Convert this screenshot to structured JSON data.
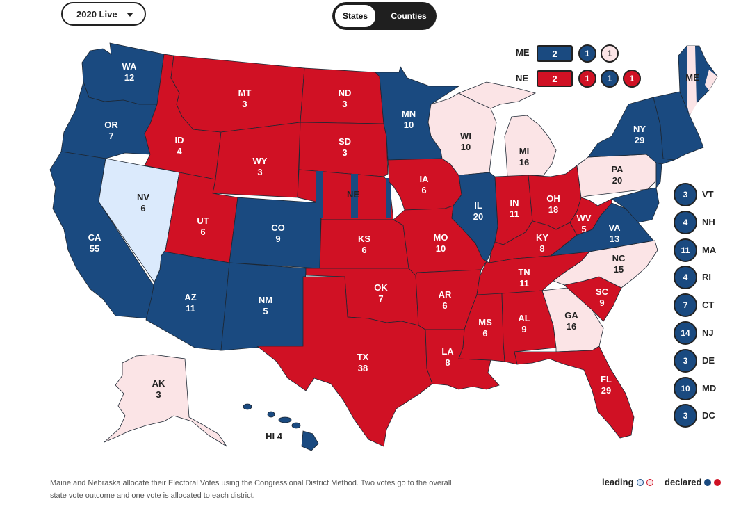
{
  "controls": {
    "year_select": "2020 Live",
    "view_options": [
      "States",
      "Counties"
    ]
  },
  "colors": {
    "dem_declared": "#1a4a80",
    "rep_declared": "#d01124",
    "dem_leading": "#dbeafc",
    "rep_leading": "#fbe4e6"
  },
  "states": {
    "WA": {
      "name": "WA",
      "ev": "12",
      "status": "dem_declared"
    },
    "OR": {
      "name": "OR",
      "ev": "7",
      "status": "dem_declared"
    },
    "CA": {
      "name": "CA",
      "ev": "55",
      "status": "dem_declared"
    },
    "NV": {
      "name": "NV",
      "ev": "6",
      "status": "dem_leading"
    },
    "ID": {
      "name": "ID",
      "ev": "4",
      "status": "rep_declared"
    },
    "MT": {
      "name": "MT",
      "ev": "3",
      "status": "rep_declared"
    },
    "WY": {
      "name": "WY",
      "ev": "3",
      "status": "rep_declared"
    },
    "UT": {
      "name": "UT",
      "ev": "6",
      "status": "rep_declared"
    },
    "AZ": {
      "name": "AZ",
      "ev": "11",
      "status": "dem_declared"
    },
    "CO": {
      "name": "CO",
      "ev": "9",
      "status": "dem_declared"
    },
    "NM": {
      "name": "NM",
      "ev": "5",
      "status": "dem_declared"
    },
    "ND": {
      "name": "ND",
      "ev": "3",
      "status": "rep_declared"
    },
    "SD": {
      "name": "SD",
      "ev": "3",
      "status": "rep_declared"
    },
    "NE": {
      "name": "NE",
      "ev": "",
      "status": "split"
    },
    "KS": {
      "name": "KS",
      "ev": "6",
      "status": "rep_declared"
    },
    "OK": {
      "name": "OK",
      "ev": "7",
      "status": "rep_declared"
    },
    "TX": {
      "name": "TX",
      "ev": "38",
      "status": "rep_declared"
    },
    "MN": {
      "name": "MN",
      "ev": "10",
      "status": "dem_declared"
    },
    "IA": {
      "name": "IA",
      "ev": "6",
      "status": "rep_declared"
    },
    "MO": {
      "name": "MO",
      "ev": "10",
      "status": "rep_declared"
    },
    "AR": {
      "name": "AR",
      "ev": "6",
      "status": "rep_declared"
    },
    "LA": {
      "name": "LA",
      "ev": "8",
      "status": "rep_declared"
    },
    "WI": {
      "name": "WI",
      "ev": "10",
      "status": "dem_leading_pink"
    },
    "IL": {
      "name": "IL",
      "ev": "20",
      "status": "dem_declared"
    },
    "MI": {
      "name": "MI",
      "ev": "16",
      "status": "rep_leading"
    },
    "IN": {
      "name": "IN",
      "ev": "11",
      "status": "rep_declared"
    },
    "OH": {
      "name": "OH",
      "ev": "18",
      "status": "rep_declared"
    },
    "KY": {
      "name": "KY",
      "ev": "8",
      "status": "rep_declared"
    },
    "TN": {
      "name": "TN",
      "ev": "11",
      "status": "rep_declared"
    },
    "MS": {
      "name": "MS",
      "ev": "6",
      "status": "rep_declared"
    },
    "AL": {
      "name": "AL",
      "ev": "9",
      "status": "rep_declared"
    },
    "GA": {
      "name": "GA",
      "ev": "16",
      "status": "rep_leading"
    },
    "FL": {
      "name": "FL",
      "ev": "29",
      "status": "rep_declared"
    },
    "SC": {
      "name": "SC",
      "ev": "9",
      "status": "rep_declared"
    },
    "NC": {
      "name": "NC",
      "ev": "15",
      "status": "rep_leading"
    },
    "VA": {
      "name": "VA",
      "ev": "13",
      "status": "dem_declared"
    },
    "WV": {
      "name": "WV",
      "ev": "5",
      "status": "rep_declared"
    },
    "PA": {
      "name": "PA",
      "ev": "20",
      "status": "rep_leading"
    },
    "NY": {
      "name": "NY",
      "ev": "29",
      "status": "dem_declared"
    },
    "ME": {
      "name": "ME",
      "ev": "",
      "status": "split"
    },
    "AK": {
      "name": "AK",
      "ev": "3",
      "status": "rep_leading"
    },
    "HI": {
      "name": "HI 4",
      "ev": "",
      "status": "dem_declared"
    }
  },
  "split_states": {
    "ME": {
      "label": "ME",
      "total": "2",
      "districts": [
        "1",
        "1"
      ]
    },
    "NE": {
      "label": "NE",
      "total": "2",
      "districts": [
        "1",
        "1",
        "1"
      ]
    }
  },
  "small_states": [
    {
      "ev": "3",
      "name": "VT"
    },
    {
      "ev": "4",
      "name": "NH"
    },
    {
      "ev": "11",
      "name": "MA"
    },
    {
      "ev": "4",
      "name": "RI"
    },
    {
      "ev": "7",
      "name": "CT"
    },
    {
      "ev": "14",
      "name": "NJ"
    },
    {
      "ev": "3",
      "name": "DE"
    },
    {
      "ev": "10",
      "name": "MD"
    },
    {
      "ev": "3",
      "name": "DC"
    }
  ],
  "footer": {
    "note": "Maine and Nebraska allocate their Electoral Votes using the Congressional District Method. Two votes go to the overall state vote outcome and one vote is allocated to each district.",
    "legend_leading": "leading",
    "legend_declared": "declared"
  }
}
